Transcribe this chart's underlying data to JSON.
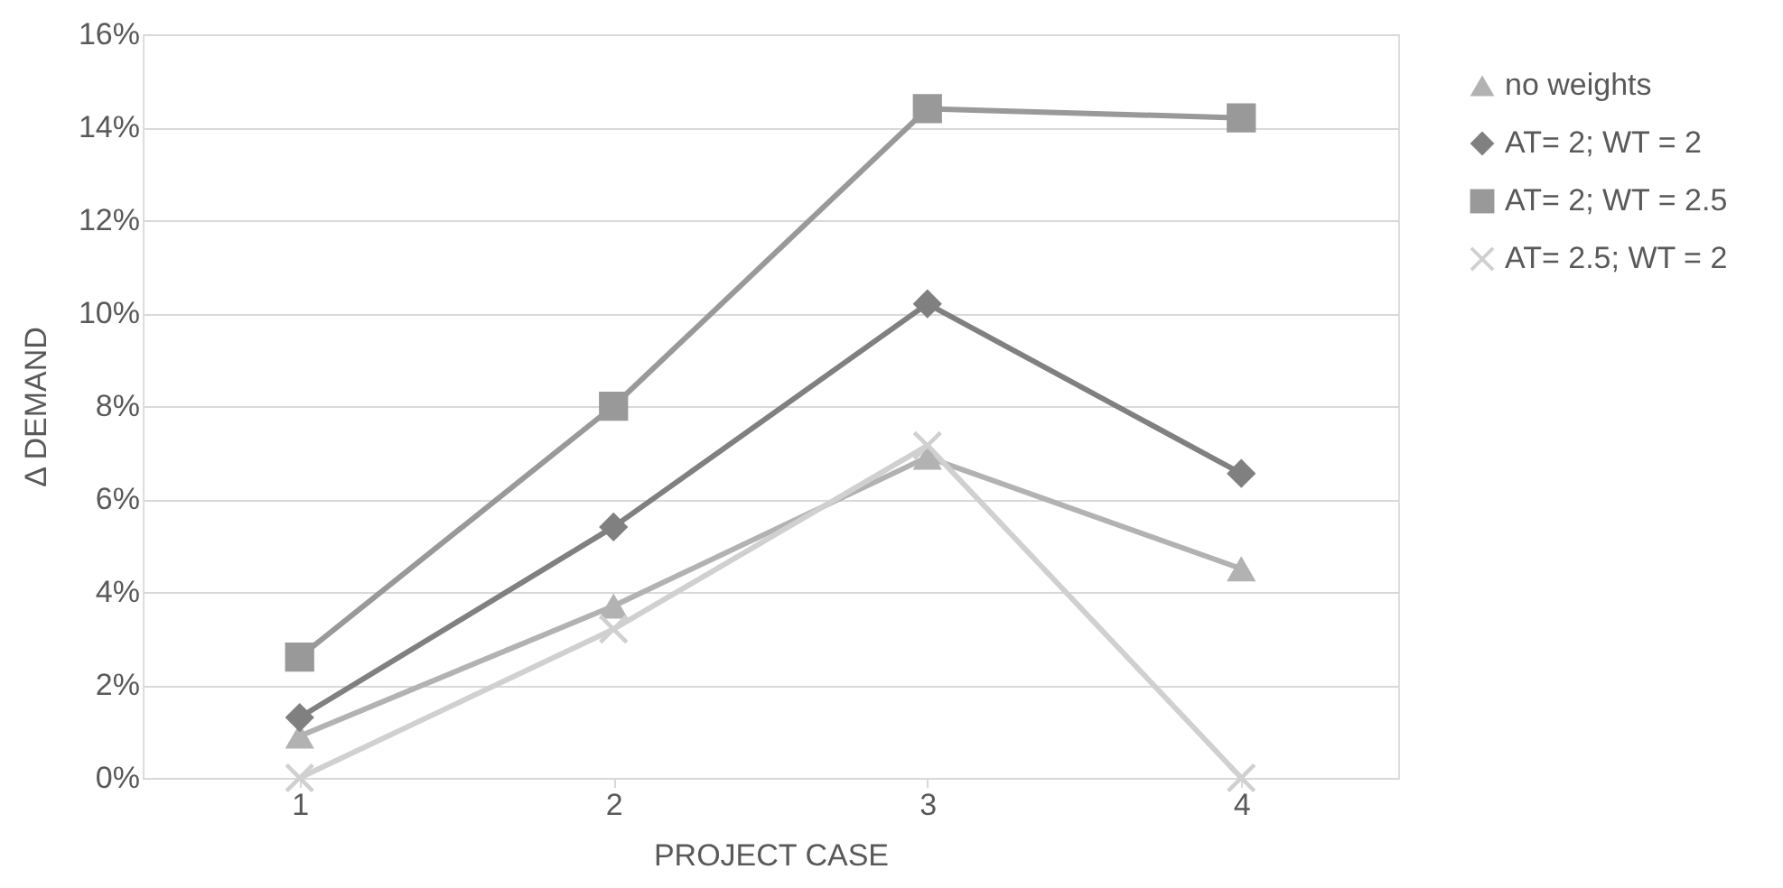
{
  "chart_data": {
    "type": "line",
    "xlabel": "PROJECT CASE",
    "ylabel": "Δ DEMAND",
    "categories": [
      "1",
      "2",
      "3",
      "4"
    ],
    "series": [
      {
        "name": "no weights",
        "color": "#b2b2b2",
        "marker": "triangle",
        "values": [
          0.9,
          3.7,
          6.9,
          4.5
        ]
      },
      {
        "name": "AT= 2; WT = 2",
        "color": "#808080",
        "marker": "diamond",
        "values": [
          1.3,
          5.4,
          10.2,
          6.55
        ]
      },
      {
        "name": "AT= 2; WT = 2.5",
        "color": "#999999",
        "marker": "square",
        "values": [
          2.6,
          8.0,
          14.4,
          14.2
        ]
      },
      {
        "name": "AT= 2.5; WT = 2",
        "color": "#d0d0d0",
        "marker": "cross",
        "values": [
          0.0,
          3.2,
          7.15,
          0.0
        ]
      }
    ],
    "ylim": [
      0,
      16
    ],
    "yticks": [
      {
        "value": 0,
        "label": "0%"
      },
      {
        "value": 2,
        "label": "2%"
      },
      {
        "value": 4,
        "label": "4%"
      },
      {
        "value": 6,
        "label": "6%"
      },
      {
        "value": 8,
        "label": "8%"
      },
      {
        "value": 10,
        "label": "10%"
      },
      {
        "value": 12,
        "label": "12%"
      },
      {
        "value": 14,
        "label": "14%"
      },
      {
        "value": 16,
        "label": "16%"
      }
    ],
    "grid": "y",
    "legend": "right",
    "line_style": "solid"
  }
}
